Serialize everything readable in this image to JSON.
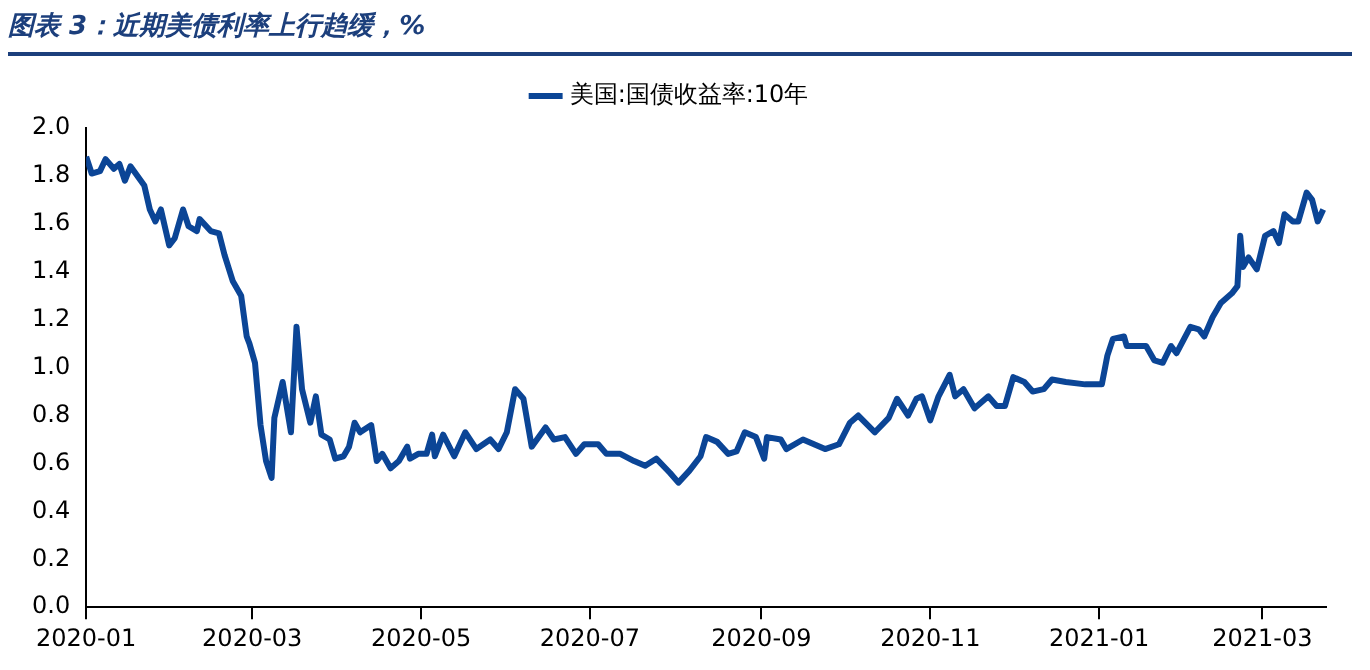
{
  "chart_data": {
    "type": "line",
    "title": "图表 3：近期美债利率上行趋缓，%",
    "legend": "top",
    "grid": false,
    "marker": "none",
    "line_style": "solid",
    "xlim": [
      "2020-01-01",
      "2021-03-24"
    ],
    "xticks": [
      {
        "value": "2020-01-01",
        "label": "2020-01"
      },
      {
        "value": "2020-03-01",
        "label": "2020-03"
      },
      {
        "value": "2020-05-01",
        "label": "2020-05"
      },
      {
        "value": "2020-07-01",
        "label": "2020-07"
      },
      {
        "value": "2020-09-01",
        "label": "2020-09"
      },
      {
        "value": "2020-11-01",
        "label": "2020-11"
      },
      {
        "value": "2021-01-01",
        "label": "2021-01"
      },
      {
        "value": "2021-03-01",
        "label": "2021-03"
      }
    ],
    "ylim": [
      0,
      2
    ],
    "yticks": [
      {
        "value": 0,
        "label": "0.0"
      },
      {
        "value": 0.2,
        "label": "0.2"
      },
      {
        "value": 0.4,
        "label": "0.4"
      },
      {
        "value": 0.6,
        "label": "0.6"
      },
      {
        "value": 0.8,
        "label": "0.8"
      },
      {
        "value": 1,
        "label": "1.0"
      },
      {
        "value": 1.2,
        "label": "1.2"
      },
      {
        "value": 1.4,
        "label": "1.4"
      },
      {
        "value": 1.6,
        "label": "1.6"
      },
      {
        "value": 1.8,
        "label": "1.8"
      },
      {
        "value": 2,
        "label": "2.0"
      }
    ],
    "x": [
      "2020-01-01",
      "2020-01-03",
      "2020-01-06",
      "2020-01-08",
      "2020-01-11",
      "2020-01-13",
      "2020-01-15",
      "2020-01-17",
      "2020-01-22",
      "2020-01-24",
      "2020-01-26",
      "2020-01-28",
      "2020-01-31",
      "2020-02-02",
      "2020-02-05",
      "2020-02-07",
      "2020-02-10",
      "2020-02-11",
      "2020-02-15",
      "2020-02-18",
      "2020-02-20",
      "2020-02-23",
      "2020-02-26",
      "2020-02-28",
      "2020-02-29",
      "2020-03-02",
      "2020-03-04",
      "2020-03-06",
      "2020-03-08",
      "2020-03-09",
      "2020-03-12",
      "2020-03-15",
      "2020-03-17",
      "2020-03-19",
      "2020-03-22",
      "2020-03-24",
      "2020-03-26",
      "2020-03-29",
      "2020-03-31",
      "2020-04-03",
      "2020-04-05",
      "2020-04-07",
      "2020-04-09",
      "2020-04-13",
      "2020-04-15",
      "2020-04-17",
      "2020-04-20",
      "2020-04-23",
      "2020-04-26",
      "2020-04-27",
      "2020-04-30",
      "2020-05-03",
      "2020-05-05",
      "2020-05-06",
      "2020-05-09",
      "2020-05-13",
      "2020-05-17",
      "2020-05-21",
      "2020-05-26",
      "2020-05-29",
      "2020-06-01",
      "2020-06-04",
      "2020-06-07",
      "2020-06-10",
      "2020-06-15",
      "2020-06-18",
      "2020-06-22",
      "2020-06-26",
      "2020-06-29",
      "2020-07-04",
      "2020-07-07",
      "2020-07-12",
      "2020-07-17",
      "2020-07-21",
      "2020-07-25",
      "2020-07-30",
      "2020-08-02",
      "2020-08-06",
      "2020-08-10",
      "2020-08-12",
      "2020-08-16",
      "2020-08-20",
      "2020-08-23",
      "2020-08-26",
      "2020-08-30",
      "2020-09-02",
      "2020-09-03",
      "2020-09-08",
      "2020-09-10",
      "2020-09-16",
      "2020-09-24",
      "2020-09-29",
      "2020-10-03",
      "2020-10-06",
      "2020-10-12",
      "2020-10-17",
      "2020-10-20",
      "2020-10-24",
      "2020-10-27",
      "2020-10-29",
      "2020-11-01",
      "2020-11-04",
      "2020-11-08",
      "2020-11-10",
      "2020-11-13",
      "2020-11-17",
      "2020-11-22",
      "2020-11-25",
      "2020-11-28",
      "2020-12-01",
      "2020-12-05",
      "2020-12-08",
      "2020-12-12",
      "2020-12-15",
      "2020-12-20",
      "2020-12-27",
      "2021-01-02",
      "2021-01-04",
      "2021-01-06",
      "2021-01-10",
      "2021-01-11",
      "2021-01-18",
      "2021-01-21",
      "2021-01-24",
      "2021-01-27",
      "2021-01-29",
      "2021-02-03",
      "2021-02-06",
      "2021-02-08",
      "2021-02-11",
      "2021-02-14",
      "2021-02-18",
      "2021-02-20",
      "2021-02-21",
      "2021-02-22",
      "2021-02-24",
      "2021-02-27",
      "2021-03-02",
      "2021-03-05",
      "2021-03-07",
      "2021-03-09",
      "2021-03-12",
      "2021-03-14",
      "2021-03-17",
      "2021-03-19",
      "2021-03-21",
      "2021-03-23"
    ],
    "series": [
      {
        "name": "美国:国债收益率:10年",
        "color": "#0b4596",
        "values": [
          1.88,
          1.81,
          1.82,
          1.87,
          1.83,
          1.85,
          1.78,
          1.84,
          1.76,
          1.66,
          1.61,
          1.66,
          1.51,
          1.54,
          1.66,
          1.59,
          1.57,
          1.62,
          1.57,
          1.56,
          1.47,
          1.36,
          1.3,
          1.13,
          1.1,
          1.02,
          0.76,
          0.61,
          0.54,
          0.79,
          0.94,
          0.73,
          1.17,
          0.91,
          0.77,
          0.88,
          0.72,
          0.7,
          0.62,
          0.63,
          0.67,
          0.77,
          0.73,
          0.76,
          0.61,
          0.64,
          0.58,
          0.61,
          0.67,
          0.62,
          0.64,
          0.64,
          0.72,
          0.63,
          0.72,
          0.63,
          0.73,
          0.66,
          0.7,
          0.66,
          0.73,
          0.91,
          0.87,
          0.67,
          0.75,
          0.7,
          0.71,
          0.64,
          0.68,
          0.68,
          0.64,
          0.64,
          0.61,
          0.59,
          0.62,
          0.56,
          0.52,
          0.57,
          0.63,
          0.71,
          0.69,
          0.64,
          0.65,
          0.73,
          0.71,
          0.62,
          0.71,
          0.7,
          0.66,
          0.7,
          0.66,
          0.68,
          0.77,
          0.8,
          0.73,
          0.79,
          0.87,
          0.8,
          0.87,
          0.88,
          0.78,
          0.88,
          0.97,
          0.88,
          0.91,
          0.83,
          0.88,
          0.84,
          0.84,
          0.96,
          0.94,
          0.9,
          0.91,
          0.95,
          0.94,
          0.93,
          0.93,
          1.05,
          1.12,
          1.13,
          1.09,
          1.09,
          1.03,
          1.02,
          1.09,
          1.06,
          1.17,
          1.16,
          1.13,
          1.21,
          1.27,
          1.31,
          1.34,
          1.55,
          1.42,
          1.46,
          1.41,
          1.55,
          1.57,
          1.52,
          1.64,
          1.61,
          1.61,
          1.73,
          1.7,
          1.61,
          1.66
        ]
      }
    ]
  }
}
